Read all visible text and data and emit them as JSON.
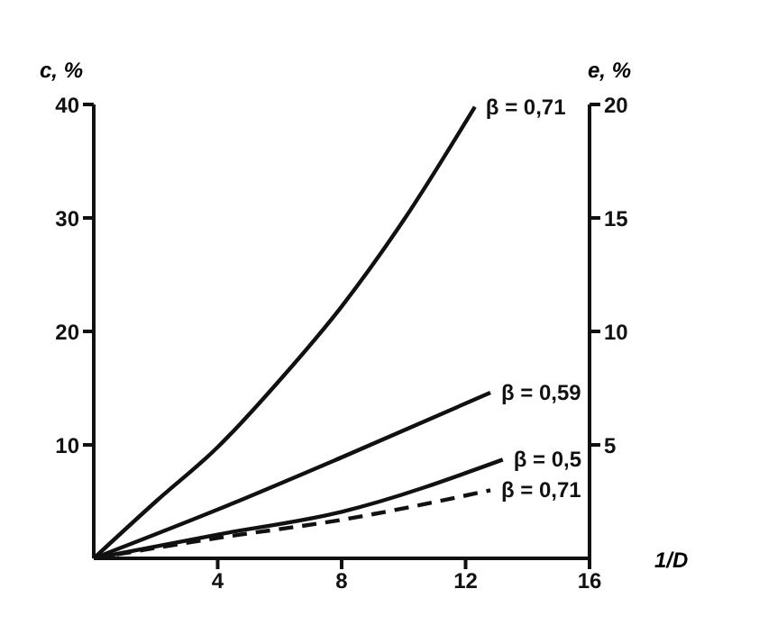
{
  "chart_data": {
    "type": "line",
    "xlabel": "1/D",
    "ylabel": "c, %",
    "y2label": "e, %",
    "xlim": [
      0,
      16
    ],
    "xticks": [
      4,
      8,
      12,
      16
    ],
    "ylim": [
      0,
      40
    ],
    "yticks": [
      10,
      20,
      30,
      40
    ],
    "y2lim": [
      0,
      20
    ],
    "y2ticks": [
      5,
      10,
      15,
      20
    ],
    "marker": "none",
    "series": [
      {
        "name": "β = 0,71",
        "color": "#111111",
        "line_style": "solid",
        "x": [
          0,
          2,
          4,
          6,
          8,
          10,
          12.3
        ],
        "values": [
          0,
          5,
          9.8,
          15.7,
          22.2,
          29.8,
          39.8
        ]
      },
      {
        "name": "β = 0,59",
        "color": "#111111",
        "line_style": "solid",
        "x": [
          0,
          4,
          8,
          12.8
        ],
        "values": [
          0,
          4.3,
          8.9,
          14.6
        ]
      },
      {
        "name": "β = 0,5",
        "color": "#111111",
        "line_style": "solid",
        "x": [
          0,
          4,
          8,
          13.2
        ],
        "values": [
          0,
          2.1,
          4.1,
          8.7
        ]
      },
      {
        "name": "β = 0,71",
        "color": "#111111",
        "line_style": "dashed",
        "x": [
          0,
          4,
          8,
          12.8
        ],
        "values": [
          0,
          1.8,
          3.4,
          6.0
        ]
      }
    ]
  }
}
